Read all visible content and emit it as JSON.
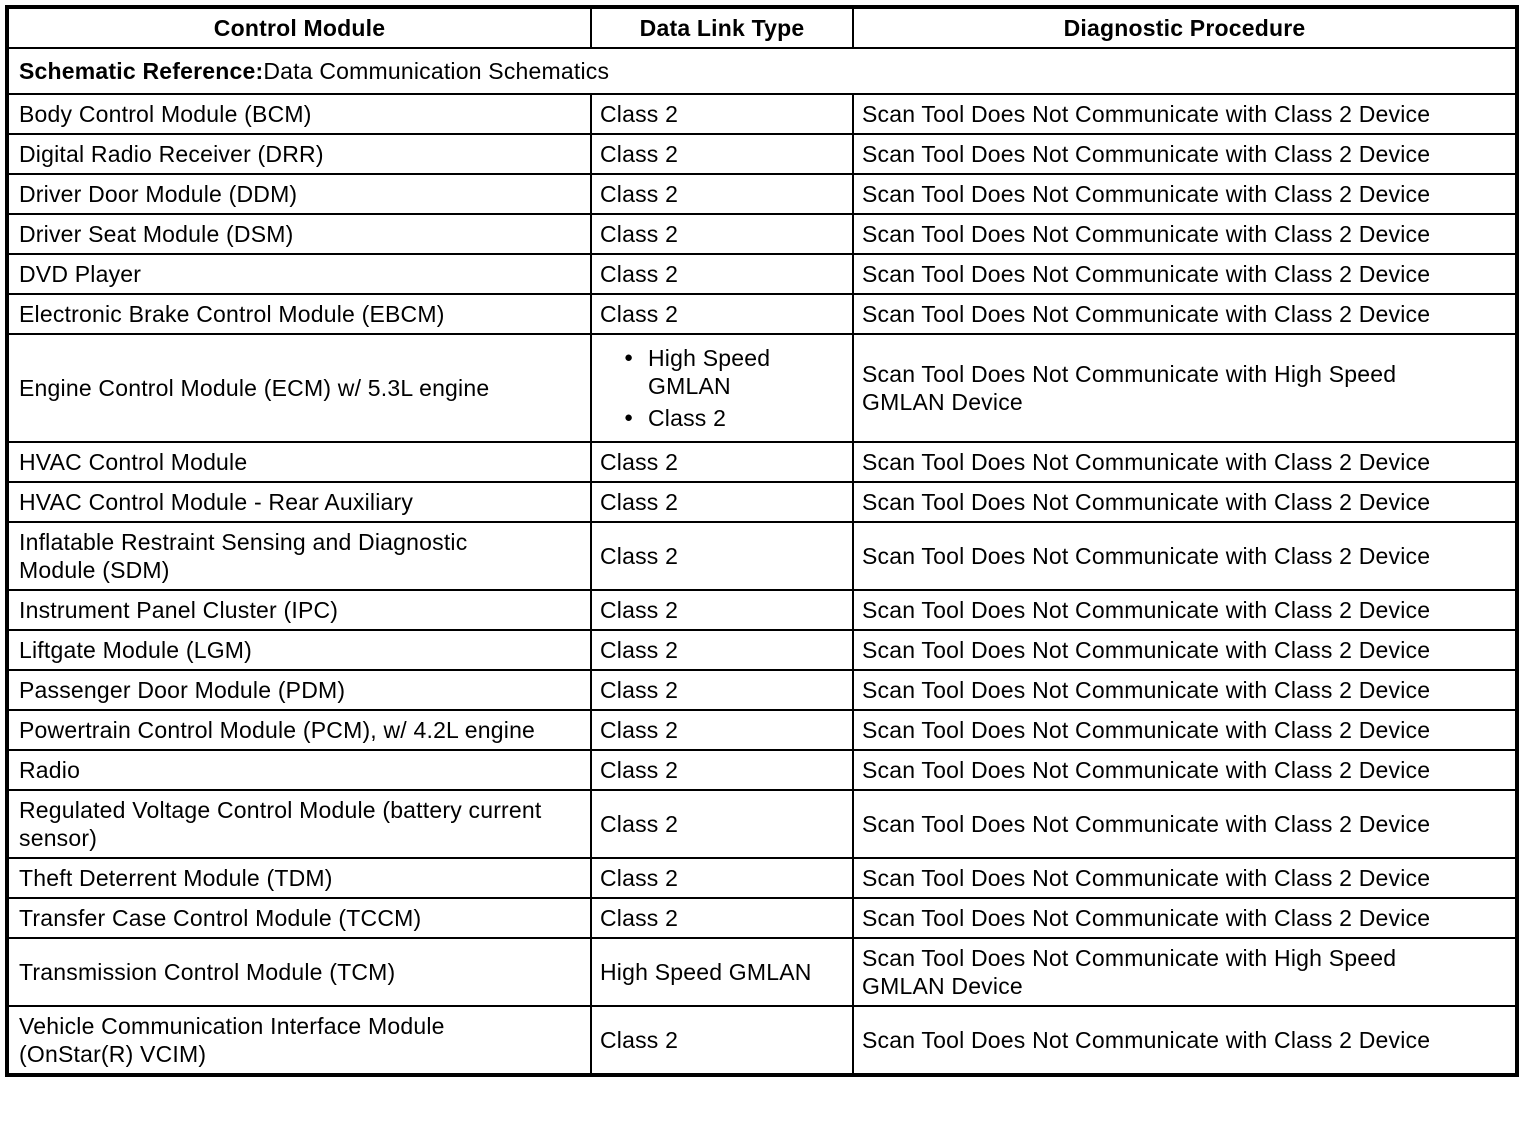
{
  "table": {
    "headers": [
      "Control Module",
      "Data Link Type",
      "Diagnostic Procedure"
    ],
    "schematic_reference": {
      "label": "Schematic Reference:",
      "value": "Data Communication Schematics"
    },
    "rows": [
      {
        "module": "Body Control Module (BCM)",
        "data_link": "Class 2",
        "procedure": "Scan Tool Does Not Communicate with Class 2 Device"
      },
      {
        "module": "Digital Radio Receiver (DRR)",
        "data_link": "Class 2",
        "procedure": "Scan Tool Does Not Communicate with Class 2 Device"
      },
      {
        "module": "Driver Door Module (DDM)",
        "data_link": "Class 2",
        "procedure": "Scan Tool Does Not Communicate with Class 2 Device"
      },
      {
        "module": "Driver Seat Module (DSM)",
        "data_link": "Class 2",
        "procedure": "Scan Tool Does Not Communicate with Class 2 Device"
      },
      {
        "module": "DVD Player",
        "data_link": "Class 2",
        "procedure": "Scan Tool Does Not Communicate with Class 2 Device"
      },
      {
        "module": "Electronic Brake Control Module (EBCM)",
        "data_link": "Class 2",
        "procedure": "Scan Tool Does Not Communicate with Class 2 Device"
      },
      {
        "module": "Engine Control Module (ECM) w/ 5.3L engine",
        "data_link": [
          "High Speed GMLAN",
          "Class 2"
        ],
        "procedure": "Scan Tool Does Not Communicate with High Speed GMLAN Device"
      },
      {
        "module": "HVAC Control Module",
        "data_link": "Class 2",
        "procedure": "Scan Tool Does Not Communicate with Class 2 Device"
      },
      {
        "module": "HVAC Control Module - Rear Auxiliary",
        "data_link": "Class 2",
        "procedure": "Scan Tool Does Not Communicate with Class 2 Device"
      },
      {
        "module": "Inflatable Restraint Sensing and Diagnostic Module (SDM)",
        "data_link": "Class 2",
        "procedure": "Scan Tool Does Not Communicate with Class 2 Device"
      },
      {
        "module": "Instrument Panel Cluster (IPC)",
        "data_link": "Class 2",
        "procedure": "Scan Tool Does Not Communicate with Class 2 Device"
      },
      {
        "module": "Liftgate Module (LGM)",
        "data_link": "Class 2",
        "procedure": "Scan Tool Does Not Communicate with Class 2 Device"
      },
      {
        "module": "Passenger Door Module (PDM)",
        "data_link": "Class 2",
        "procedure": "Scan Tool Does Not Communicate with Class 2 Device"
      },
      {
        "module": "Powertrain Control Module (PCM), w/ 4.2L engine",
        "data_link": "Class 2",
        "procedure": "Scan Tool Does Not Communicate with Class 2 Device"
      },
      {
        "module": "Radio",
        "data_link": "Class 2",
        "procedure": "Scan Tool Does Not Communicate with Class 2 Device"
      },
      {
        "module": "Regulated Voltage Control Module (battery current sensor)",
        "data_link": "Class 2",
        "procedure": "Scan Tool Does Not Communicate with Class 2 Device"
      },
      {
        "module": "Theft Deterrent Module (TDM)",
        "data_link": "Class 2",
        "procedure": "Scan Tool Does Not Communicate with Class 2 Device"
      },
      {
        "module": "Transfer Case Control Module (TCCM)",
        "data_link": "Class 2",
        "procedure": "Scan Tool Does Not Communicate with Class 2 Device"
      },
      {
        "module": "Transmission Control Module (TCM)",
        "data_link": "High Speed GMLAN",
        "procedure": "Scan Tool Does Not Communicate with High Speed GMLAN Device"
      },
      {
        "module": "Vehicle Communication Interface Module (OnStar(R) VCIM)",
        "data_link": "Class 2",
        "procedure": "Scan Tool Does Not Communicate with Class 2 Device"
      }
    ]
  },
  "icons": {
    "bullet": "●"
  },
  "colors": {
    "background": "#ffffff",
    "border": "#000000",
    "text": "#000000"
  }
}
